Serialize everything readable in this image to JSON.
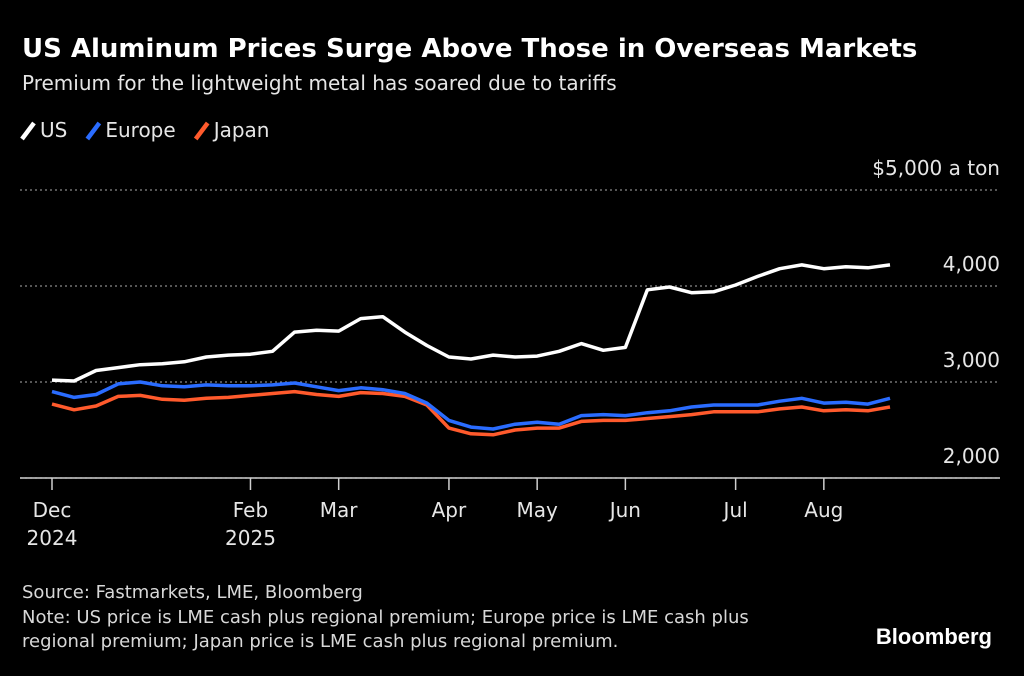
{
  "chart_data": {
    "type": "line",
    "title": "US Aluminum Prices Surge Above Those in Overseas Markets",
    "subtitle": "Premium for the lightweight metal has soared due to tariffs",
    "categories": [
      "Dec 2024",
      null,
      null,
      null,
      null,
      null,
      null,
      null,
      null,
      "Feb 2025",
      null,
      null,
      null,
      "Mar",
      null,
      null,
      null,
      null,
      "Apr",
      null,
      null,
      null,
      "May",
      null,
      null,
      null,
      "Jun",
      null,
      null,
      null,
      null,
      "Jul",
      null,
      null,
      null,
      "Aug",
      null,
      null,
      null
    ],
    "series": [
      {
        "name": "US",
        "color": "#ffffff",
        "values": [
          3020,
          3010,
          3120,
          3150,
          3180,
          3190,
          3210,
          3260,
          3280,
          3290,
          3320,
          3520,
          3540,
          3530,
          3660,
          3680,
          3520,
          3380,
          3260,
          3240,
          3280,
          3260,
          3270,
          3320,
          3400,
          3330,
          3360,
          3960,
          3990,
          3930,
          3940,
          4010,
          4100,
          4180,
          4220,
          4180,
          4200,
          4190,
          4220
        ]
      },
      {
        "name": "Europe",
        "color": "#2a6cff",
        "values": [
          2900,
          2840,
          2870,
          2980,
          3000,
          2960,
          2950,
          2970,
          2960,
          2960,
          2970,
          2990,
          2950,
          2910,
          2940,
          2920,
          2880,
          2780,
          2600,
          2530,
          2510,
          2560,
          2580,
          2560,
          2650,
          2660,
          2650,
          2680,
          2700,
          2740,
          2760,
          2760,
          2760,
          2800,
          2830,
          2780,
          2790,
          2770,
          2830
        ]
      },
      {
        "name": "Japan",
        "color": "#ff5a2c",
        "values": [
          2770,
          2710,
          2750,
          2850,
          2860,
          2820,
          2810,
          2830,
          2840,
          2860,
          2880,
          2900,
          2870,
          2850,
          2890,
          2880,
          2850,
          2760,
          2520,
          2460,
          2450,
          2500,
          2520,
          2520,
          2590,
          2600,
          2600,
          2620,
          2640,
          2660,
          2690,
          2690,
          2690,
          2720,
          2740,
          2700,
          2710,
          2700,
          2740
        ]
      }
    ],
    "ylim": [
      2000,
      5000
    ],
    "yticks": [
      {
        "value": 5000,
        "label": "$5,000 a ton"
      },
      {
        "value": 4000,
        "label": "4,000"
      },
      {
        "value": 3000,
        "label": "3,000"
      },
      {
        "value": 2000,
        "label": "2,000"
      }
    ],
    "grid": true,
    "source": "Source: Fastmarkets, LME, Bloomberg",
    "note": "Note: US price is LME cash plus regional premium; Europe price is LME cash plus regional premium; Japan price is LME cash plus regional premium.",
    "brand": "Bloomberg"
  }
}
